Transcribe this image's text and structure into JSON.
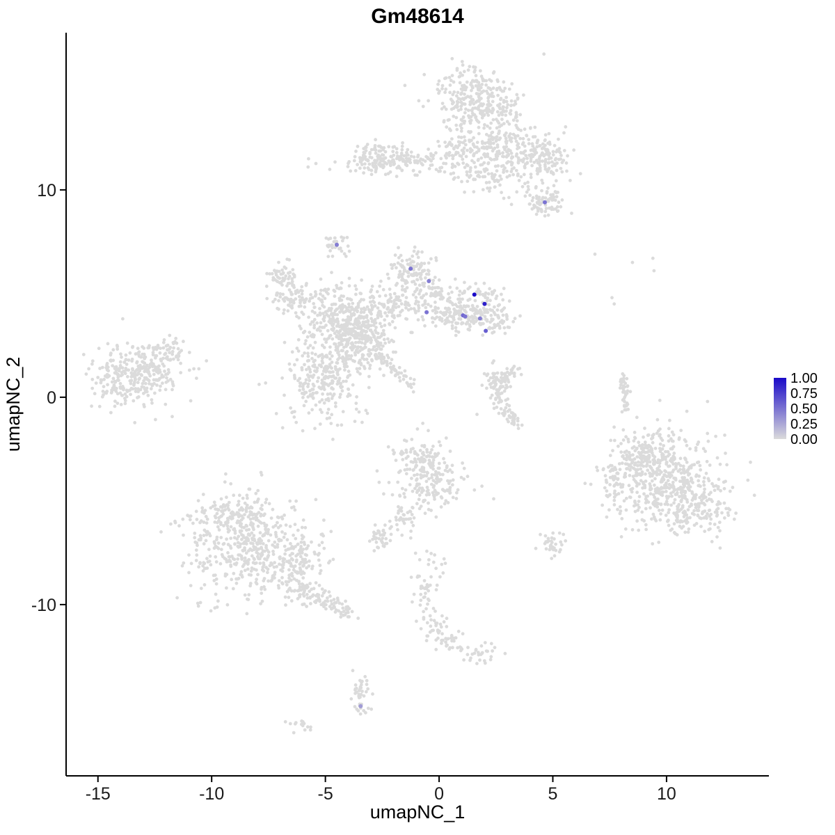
{
  "chart_data": {
    "type": "scatter",
    "title": "Gm48614",
    "xlabel": "umapNC_1",
    "ylabel": "umapNC_2",
    "xlim": [
      -16.4,
      14.5
    ],
    "ylim": [
      -18.26,
      17.58
    ],
    "x_ticks": [
      -15,
      -10,
      -5,
      0,
      5,
      10
    ],
    "y_ticks": [
      -10,
      0,
      10
    ],
    "grid": false,
    "point_color_low": "#DBDBDB",
    "point_color_high": "#1A0AC8",
    "legend": {
      "position": "right",
      "entries": [
        {
          "label": "1.00",
          "value": 1.0
        },
        {
          "label": "0.75",
          "value": 0.75
        },
        {
          "label": "0.50",
          "value": 0.5
        },
        {
          "label": "0.25",
          "value": 0.25
        },
        {
          "label": "0.00",
          "value": 0.0
        }
      ]
    },
    "background_clusters": [
      {
        "x": 1.5,
        "y": 14.46,
        "sx": 0.92,
        "sy": 0.84,
        "n": 250
      },
      {
        "x": 2.42,
        "y": 12.45,
        "sx": 0.76,
        "sy": 1.01,
        "n": 200
      },
      {
        "x": 4.1,
        "y": 11.61,
        "sx": 0.76,
        "sy": 0.6,
        "n": 110
      },
      {
        "x": 4.86,
        "y": 11.44,
        "sx": 0.46,
        "sy": 0.4,
        "n": 60
      },
      {
        "x": 4.71,
        "y": 9.43,
        "sx": 0.43,
        "sy": 0.4,
        "n": 80
      },
      {
        "x": -1.71,
        "y": 11.38,
        "sx": 1.38,
        "sy": 0.34,
        "n": 150
      },
      {
        "x": -2.63,
        "y": 11.51,
        "sx": 0.55,
        "sy": 0.4,
        "n": 70
      },
      {
        "x": 0.73,
        "y": 11.95,
        "sx": 0.46,
        "sy": 0.67,
        "n": 60
      },
      {
        "x": 2.11,
        "y": 10.6,
        "sx": 0.92,
        "sy": 0.6,
        "n": 70
      },
      {
        "x": -4.56,
        "y": 7.32,
        "sx": 0.28,
        "sy": 0.27,
        "n": 35
      },
      {
        "x": -1.19,
        "y": 6.07,
        "sx": 0.49,
        "sy": 0.47,
        "n": 90
      },
      {
        "x": -0.49,
        "y": 5.07,
        "sx": 0.61,
        "sy": 0.54,
        "n": 90
      },
      {
        "x": 1.65,
        "y": 4.4,
        "sx": 0.67,
        "sy": 0.6,
        "n": 140
      },
      {
        "x": 0.58,
        "y": 3.89,
        "sx": 0.61,
        "sy": 0.4,
        "n": 80
      },
      {
        "x": -4.16,
        "y": 3.72,
        "sx": 0.92,
        "sy": 0.84,
        "n": 320
      },
      {
        "x": -3.39,
        "y": 2.65,
        "sx": 0.76,
        "sy": 0.67,
        "n": 200
      },
      {
        "x": -6.3,
        "y": 4.73,
        "sx": 0.61,
        "sy": 0.5,
        "n": 90
      },
      {
        "x": -6.91,
        "y": 5.91,
        "sx": 0.37,
        "sy": 0.34,
        "n": 45
      },
      {
        "x": -5.08,
        "y": 0.87,
        "sx": 0.86,
        "sy": 1.01,
        "n": 260
      },
      {
        "x": -2.17,
        "y": 4.4,
        "sx": 0.76,
        "sy": 0.5,
        "n": 90
      },
      {
        "x": 2.57,
        "y": 3.56,
        "sx": 0.37,
        "sy": 0.34,
        "n": 35
      },
      {
        "x": -13.18,
        "y": 1.21,
        "sx": 0.98,
        "sy": 0.74,
        "n": 280
      },
      {
        "x": -11.96,
        "y": 2.21,
        "sx": 0.37,
        "sy": 0.34,
        "n": 45
      },
      {
        "x": -14.25,
        "y": 0.54,
        "sx": 0.37,
        "sy": 0.47,
        "n": 40
      },
      {
        "x": 2.48,
        "y": 0.87,
        "sx": 0.31,
        "sy": 0.34,
        "n": 40
      },
      {
        "x": 10.06,
        "y": -4.16,
        "sx": 1.22,
        "sy": 1.21,
        "n": 480
      },
      {
        "x": 8.84,
        "y": -2.92,
        "sx": 0.55,
        "sy": 0.5,
        "n": 80
      },
      {
        "x": 11.28,
        "y": -5.34,
        "sx": 0.76,
        "sy": 0.67,
        "n": 110
      },
      {
        "x": 7.77,
        "y": -4.33,
        "sx": 0.37,
        "sy": 0.67,
        "n": 50
      },
      {
        "x": 9.45,
        "y": -2.32,
        "sx": 0.76,
        "sy": 0.4,
        "n": 50
      },
      {
        "x": -8.44,
        "y": -7.35,
        "sx": 1.38,
        "sy": 1.28,
        "n": 450
      },
      {
        "x": -9.05,
        "y": -5.6,
        "sx": 0.86,
        "sy": 0.54,
        "n": 110
      },
      {
        "x": -6.15,
        "y": -7.68,
        "sx": 0.55,
        "sy": 0.84,
        "n": 90
      },
      {
        "x": -0.49,
        "y": -3.99,
        "sx": 0.8,
        "sy": 0.81,
        "n": 200
      },
      {
        "x": -0.95,
        "y": -2.82,
        "sx": 0.43,
        "sy": 0.34,
        "n": 50
      },
      {
        "x": -1.5,
        "y": -5.84,
        "sx": 0.21,
        "sy": 0.4,
        "n": 28
      },
      {
        "x": -2.54,
        "y": -6.68,
        "sx": 0.31,
        "sy": 0.3,
        "n": 40
      },
      {
        "x": 5.02,
        "y": -7.08,
        "sx": 0.31,
        "sy": 0.27,
        "n": 35
      },
      {
        "x": -0.58,
        "y": -9.43,
        "sx": 0.24,
        "sy": 0.47,
        "n": 32
      },
      {
        "x": -0.09,
        "y": -11.21,
        "sx": 0.31,
        "sy": 0.4,
        "n": 36
      },
      {
        "x": 0.58,
        "y": -11.78,
        "sx": 0.24,
        "sy": 0.27,
        "n": 22
      },
      {
        "x": 1.8,
        "y": -12.38,
        "sx": 0.37,
        "sy": 0.27,
        "n": 30
      },
      {
        "x": -3.39,
        "y": -14.4,
        "sx": 0.24,
        "sy": 0.47,
        "n": 42
      },
      {
        "x": -6.09,
        "y": -15.91,
        "sx": 0.24,
        "sy": 0.17,
        "n": 14
      },
      {
        "x": -0.34,
        "y": -8.02,
        "sx": 0.43,
        "sy": 0.4,
        "n": 15
      }
    ],
    "background_lines": [
      {
        "x1": -2.78,
        "y1": 2.21,
        "x2": -1.1,
        "y2": 0.54,
        "n": 60,
        "jitter": 0.12
      },
      {
        "x1": 8.07,
        "y1": 1.04,
        "x2": 8.23,
        "y2": -0.7,
        "n": 45,
        "jitter": 0.08
      },
      {
        "x1": -6.45,
        "y1": -9.19,
        "x2": -3.85,
        "y2": -10.3,
        "n": 110,
        "jitter": 0.28
      }
    ],
    "background_arcs": [
      {
        "cx": 3.85,
        "cy": 0.13,
        "rx": 1.22,
        "ry": 1.34,
        "a1": 110,
        "a2": 250,
        "n": 110,
        "jitter": 0.15
      }
    ],
    "background_singles": [
      [
        6.85,
        6.9
      ],
      [
        8.5,
        6.5
      ],
      [
        9.4,
        6.7
      ],
      [
        9.45,
        6.1
      ],
      [
        7.6,
        4.8
      ],
      [
        7.7,
        4.5
      ],
      [
        2.4,
        -4.9
      ],
      [
        8.4,
        -2.8
      ]
    ],
    "expressing_cells": [
      {
        "x": 4.65,
        "y": 9.4,
        "value": 0.5
      },
      {
        "x": -4.5,
        "y": 7.35,
        "value": 0.45
      },
      {
        "x": -1.25,
        "y": 6.2,
        "value": 0.5
      },
      {
        "x": -0.45,
        "y": 5.6,
        "value": 0.45
      },
      {
        "x": 1.55,
        "y": 4.95,
        "value": 1.0
      },
      {
        "x": 2.0,
        "y": 4.5,
        "value": 0.9
      },
      {
        "x": -0.55,
        "y": 4.1,
        "value": 0.5
      },
      {
        "x": 1.05,
        "y": 3.95,
        "value": 0.55
      },
      {
        "x": 1.15,
        "y": 3.9,
        "value": 0.5
      },
      {
        "x": 1.8,
        "y": 3.8,
        "value": 0.45
      },
      {
        "x": 2.05,
        "y": 3.2,
        "value": 0.6
      },
      {
        "x": -3.45,
        "y": -14.9,
        "value": 0.3
      }
    ]
  }
}
